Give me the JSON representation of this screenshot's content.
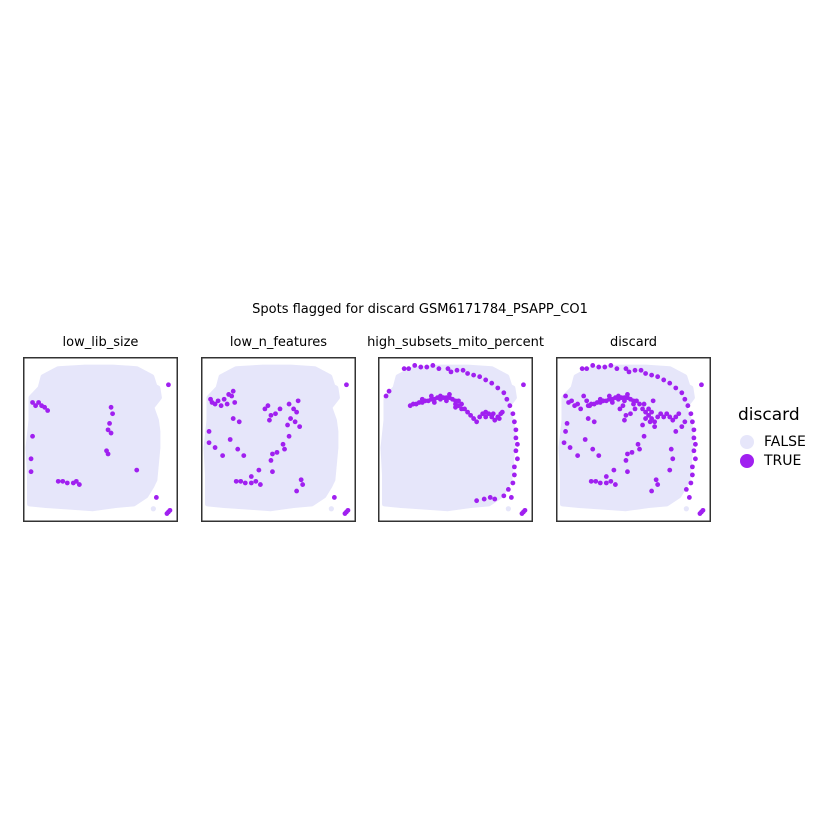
{
  "chart_data": {
    "type": "scatter",
    "title": "Spots flagged for discard GSM6171784_PSAPP_CO1",
    "facets": [
      {
        "name": "low_lib_size"
      },
      {
        "name": "low_n_features"
      },
      {
        "name": "high_subsets_mito_percent"
      },
      {
        "name": "discard"
      }
    ],
    "legend": {
      "title": "discard",
      "position": "right",
      "entries": [
        {
          "label": "FALSE",
          "color": "#e6e6fa"
        },
        {
          "label": "TRUE",
          "color": "#a020f0"
        }
      ]
    },
    "colors": {
      "FALSE": "#e6e6fa",
      "TRUE": "#a020f0",
      "panel_border": "#333333"
    },
    "grid": false,
    "axes_visible": false,
    "xlim": [
      0,
      100
    ],
    "ylim": [
      0,
      100
    ],
    "tissue_shape": [
      [
        3,
        10
      ],
      [
        3,
        28
      ],
      [
        2,
        45
      ],
      [
        4,
        62
      ],
      [
        4,
        76
      ],
      [
        10,
        82
      ],
      [
        12,
        89
      ],
      [
        22,
        94
      ],
      [
        40,
        95
      ],
      [
        58,
        95
      ],
      [
        74,
        94
      ],
      [
        84,
        89
      ],
      [
        86,
        83
      ],
      [
        88,
        82
      ],
      [
        89,
        76
      ],
      [
        84,
        70
      ],
      [
        87,
        62
      ],
      [
        88,
        55
      ],
      [
        88,
        45
      ],
      [
        87,
        35
      ],
      [
        86,
        25
      ],
      [
        84,
        21
      ],
      [
        80,
        15
      ],
      [
        72,
        10
      ],
      [
        60,
        9
      ],
      [
        45,
        7
      ],
      [
        30,
        8
      ],
      [
        14,
        9
      ]
    ],
    "stray_points": {
      "FALSE": [
        [
          85,
          7
        ],
        [
          87,
          74
        ]
      ],
      "TRUE_corner": [
        [
          95,
          84
        ],
        [
          87,
          14
        ],
        [
          95,
          5
        ],
        [
          94,
          4
        ],
        [
          96,
          6
        ]
      ]
    },
    "true_points": {
      "low_lib_size": [
        [
          5,
          73
        ],
        [
          7,
          71
        ],
        [
          9,
          73
        ],
        [
          11,
          71
        ],
        [
          13,
          70
        ],
        [
          15,
          68
        ],
        [
          5,
          52
        ],
        [
          4,
          38
        ],
        [
          4,
          30
        ],
        [
          57,
          70
        ],
        [
          58,
          66
        ],
        [
          56,
          60
        ],
        [
          55,
          56
        ],
        [
          57,
          54
        ],
        [
          54,
          43
        ],
        [
          55,
          41
        ],
        [
          74,
          31
        ],
        [
          22,
          24
        ],
        [
          25,
          24
        ],
        [
          28,
          23
        ],
        [
          32,
          23
        ],
        [
          34,
          24
        ],
        [
          36,
          22
        ]
      ],
      "low_n_features": [
        [
          5,
          75
        ],
        [
          6,
          73
        ],
        [
          8,
          72
        ],
        [
          10,
          74
        ],
        [
          12,
          71
        ],
        [
          14,
          75
        ],
        [
          16,
          72
        ],
        [
          17,
          78
        ],
        [
          19,
          77
        ],
        [
          21,
          73
        ],
        [
          20,
          80
        ],
        [
          4,
          55
        ],
        [
          4,
          48
        ],
        [
          8,
          45
        ],
        [
          20,
          63
        ],
        [
          24,
          61
        ],
        [
          18,
          50
        ],
        [
          23,
          44
        ],
        [
          27,
          40
        ],
        [
          41,
          69
        ],
        [
          43,
          71
        ],
        [
          45,
          65
        ],
        [
          44,
          62
        ],
        [
          48,
          66
        ],
        [
          51,
          69
        ],
        [
          57,
          72
        ],
        [
          60,
          69
        ],
        [
          63,
          74
        ],
        [
          62,
          67
        ],
        [
          58,
          63
        ],
        [
          61,
          61
        ],
        [
          56,
          59
        ],
        [
          64,
          58
        ],
        [
          57,
          52
        ],
        [
          53,
          47
        ],
        [
          54,
          44
        ],
        [
          49,
          42
        ],
        [
          46,
          41
        ],
        [
          13,
          40
        ],
        [
          45,
          37
        ],
        [
          46,
          30
        ],
        [
          37,
          31
        ],
        [
          32,
          27
        ],
        [
          22,
          24
        ],
        [
          25,
          24
        ],
        [
          28,
          23
        ],
        [
          32,
          23
        ],
        [
          35,
          24
        ],
        [
          38,
          22
        ],
        [
          62,
          18
        ],
        [
          65,
          25
        ],
        [
          66,
          22
        ]
      ],
      "high_subsets_mito_percent": [
        [
          6,
          80
        ],
        [
          4,
          77
        ],
        [
          16,
          94
        ],
        [
          19,
          94
        ],
        [
          23,
          96
        ],
        [
          27,
          95
        ],
        [
          31,
          95
        ],
        [
          35,
          96
        ],
        [
          39,
          94
        ],
        [
          45,
          94
        ],
        [
          47,
          92
        ],
        [
          51,
          93
        ],
        [
          55,
          93
        ],
        [
          58,
          91
        ],
        [
          62,
          90
        ],
        [
          66,
          89
        ],
        [
          70,
          87
        ],
        [
          74,
          85
        ],
        [
          78,
          82
        ],
        [
          82,
          79
        ],
        [
          84,
          75
        ],
        [
          86,
          71
        ],
        [
          88,
          66
        ],
        [
          89,
          61
        ],
        [
          90,
          56
        ],
        [
          90,
          51
        ],
        [
          91,
          47
        ],
        [
          90,
          43
        ],
        [
          91,
          38
        ],
        [
          89,
          33
        ],
        [
          89,
          28
        ],
        [
          88,
          23
        ],
        [
          85,
          19
        ],
        [
          82,
          15
        ],
        [
          76,
          13
        ],
        [
          73,
          14
        ],
        [
          69,
          13
        ],
        [
          64,
          12
        ],
        [
          20,
          71
        ],
        [
          22,
          72
        ],
        [
          24,
          72
        ],
        [
          26,
          73
        ],
        [
          28,
          73
        ],
        [
          30,
          74
        ],
        [
          32,
          74
        ],
        [
          34,
          75
        ],
        [
          36,
          75
        ],
        [
          38,
          76
        ],
        [
          40,
          75
        ],
        [
          42,
          76
        ],
        [
          44,
          76
        ],
        [
          46,
          76
        ],
        [
          48,
          75
        ],
        [
          50,
          74
        ],
        [
          52,
          74
        ],
        [
          54,
          72
        ],
        [
          28,
          75
        ],
        [
          34,
          77
        ],
        [
          40,
          77
        ],
        [
          46,
          78
        ],
        [
          36,
          73
        ],
        [
          44,
          74
        ],
        [
          50,
          72
        ],
        [
          50,
          70
        ],
        [
          56,
          69
        ],
        [
          58,
          67
        ],
        [
          60,
          65
        ],
        [
          62,
          63
        ],
        [
          64,
          61
        ],
        [
          66,
          64
        ],
        [
          68,
          66
        ],
        [
          70,
          64
        ],
        [
          72,
          66
        ],
        [
          74,
          64
        ],
        [
          76,
          62
        ],
        [
          78,
          64
        ],
        [
          80,
          66
        ],
        [
          52,
          71
        ],
        [
          54,
          69
        ],
        [
          70,
          67
        ],
        [
          75,
          66
        ],
        [
          79,
          63
        ],
        [
          81,
          67
        ]
      ],
      "discard": [
        [
          5,
          77
        ],
        [
          7,
          73
        ],
        [
          9,
          74
        ],
        [
          11,
          71
        ],
        [
          13,
          72
        ],
        [
          15,
          69
        ],
        [
          17,
          77
        ],
        [
          19,
          74
        ],
        [
          21,
          71
        ],
        [
          16,
          94
        ],
        [
          19,
          94
        ],
        [
          23,
          96
        ],
        [
          27,
          95
        ],
        [
          31,
          95
        ],
        [
          35,
          96
        ],
        [
          39,
          94
        ],
        [
          45,
          94
        ],
        [
          47,
          92
        ],
        [
          51,
          93
        ],
        [
          55,
          93
        ],
        [
          58,
          91
        ],
        [
          62,
          90
        ],
        [
          66,
          89
        ],
        [
          70,
          87
        ],
        [
          74,
          85
        ],
        [
          78,
          82
        ],
        [
          82,
          79
        ],
        [
          84,
          75
        ],
        [
          86,
          71
        ],
        [
          88,
          66
        ],
        [
          89,
          61
        ],
        [
          90,
          56
        ],
        [
          90,
          51
        ],
        [
          91,
          47
        ],
        [
          90,
          43
        ],
        [
          91,
          38
        ],
        [
          89,
          33
        ],
        [
          89,
          28
        ],
        [
          88,
          23
        ],
        [
          85,
          19
        ],
        [
          20,
          71
        ],
        [
          22,
          72
        ],
        [
          24,
          72
        ],
        [
          26,
          73
        ],
        [
          28,
          73
        ],
        [
          30,
          74
        ],
        [
          32,
          74
        ],
        [
          34,
          75
        ],
        [
          36,
          75
        ],
        [
          38,
          76
        ],
        [
          40,
          75
        ],
        [
          42,
          76
        ],
        [
          44,
          76
        ],
        [
          46,
          76
        ],
        [
          48,
          75
        ],
        [
          50,
          74
        ],
        [
          52,
          74
        ],
        [
          54,
          72
        ],
        [
          28,
          75
        ],
        [
          34,
          77
        ],
        [
          40,
          77
        ],
        [
          46,
          78
        ],
        [
          36,
          73
        ],
        [
          44,
          74
        ],
        [
          50,
          72
        ],
        [
          56,
          69
        ],
        [
          58,
          67
        ],
        [
          60,
          65
        ],
        [
          62,
          63
        ],
        [
          64,
          61
        ],
        [
          66,
          64
        ],
        [
          68,
          66
        ],
        [
          70,
          64
        ],
        [
          72,
          66
        ],
        [
          74,
          64
        ],
        [
          76,
          62
        ],
        [
          78,
          64
        ],
        [
          80,
          66
        ],
        [
          5,
          55
        ],
        [
          4,
          48
        ],
        [
          8,
          45
        ],
        [
          20,
          63
        ],
        [
          24,
          61
        ],
        [
          18,
          50
        ],
        [
          23,
          44
        ],
        [
          27,
          40
        ],
        [
          41,
          69
        ],
        [
          43,
          71
        ],
        [
          45,
          65
        ],
        [
          44,
          62
        ],
        [
          48,
          66
        ],
        [
          51,
          69
        ],
        [
          57,
          72
        ],
        [
          60,
          69
        ],
        [
          63,
          74
        ],
        [
          62,
          67
        ],
        [
          58,
          63
        ],
        [
          61,
          61
        ],
        [
          56,
          59
        ],
        [
          64,
          58
        ],
        [
          57,
          52
        ],
        [
          53,
          47
        ],
        [
          54,
          44
        ],
        [
          49,
          42
        ],
        [
          46,
          41
        ],
        [
          13,
          40
        ],
        [
          45,
          37
        ],
        [
          46,
          30
        ],
        [
          37,
          31
        ],
        [
          32,
          27
        ],
        [
          22,
          24
        ],
        [
          25,
          24
        ],
        [
          28,
          23
        ],
        [
          32,
          23
        ],
        [
          35,
          24
        ],
        [
          38,
          22
        ],
        [
          62,
          18
        ],
        [
          65,
          25
        ],
        [
          66,
          22
        ],
        [
          74,
          31
        ],
        [
          76,
          38
        ],
        [
          75,
          44
        ],
        [
          78,
          55
        ],
        [
          82,
          58
        ],
        [
          84,
          61
        ],
        [
          6,
          60
        ]
      ]
    }
  }
}
